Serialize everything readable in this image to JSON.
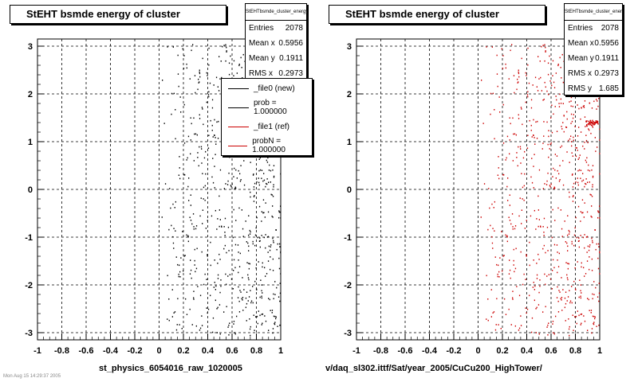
{
  "footer_note": "Mon Aug 15 14:29:37 2005",
  "panels": [
    {
      "title": "StEHT bsmde energy of cluster",
      "xlabel": "st_physics_6054016_raw_1020005",
      "stats": {
        "header": "StEHTbsmde_cluster_energy",
        "rows": [
          {
            "label": "Entries",
            "value": "2078"
          },
          {
            "label": "Mean x",
            "value": "0.5956"
          },
          {
            "label": "Mean y",
            "value": "0.1911"
          },
          {
            "label": "RMS x",
            "value": "0.2973"
          }
        ]
      },
      "legend": [
        {
          "label": "_file0 (new)",
          "color": "#000000"
        },
        {
          "label": "prob = 1.000000",
          "color": "#000000"
        },
        {
          "label": "_file1 (ref)",
          "color": "#cc0000"
        },
        {
          "label": "probN = 1.000000",
          "color": "#cc0000"
        }
      ]
    },
    {
      "title": "StEHT bsmde energy of cluster",
      "xlabel": "v/daq_sl302.ittf/Sat/year_2005/CuCu200_HighTower/",
      "stats": {
        "header": "StEHTbsmde_cluster_energy",
        "rows": [
          {
            "label": "Entries",
            "value": "2078"
          },
          {
            "label": "Mean x",
            "value": "0.5956"
          },
          {
            "label": "Mean y",
            "value": "0.1911"
          },
          {
            "label": "RMS x",
            "value": "0.2973"
          },
          {
            "label": "RMS y",
            "value": "1.685"
          }
        ]
      }
    }
  ],
  "chart_data": [
    {
      "type": "scatter",
      "title": "StEHT bsmde energy of cluster",
      "xlabel": "st_physics_6054016_raw_1020005",
      "ylabel": "",
      "xlim": [
        -1,
        1
      ],
      "ylim": [
        -3.15,
        3.15
      ],
      "xticks": [
        "-1",
        "-0.8",
        "-0.6",
        "-0.4",
        "-0.2",
        "0",
        "0.2",
        "0.4",
        "0.6",
        "0.8",
        "1"
      ],
      "yticks": [
        "-3",
        "-2",
        "-1",
        "0",
        "1",
        "2",
        "3"
      ],
      "grid": true,
      "legend_position": "top-right",
      "series": [
        {
          "name": "_file0 (new)",
          "color": "#000000",
          "entries": 2078,
          "x_range": [
            0.0,
            1.0
          ],
          "y_range": [
            -3.1,
            3.1
          ],
          "mean_x": 0.5956,
          "mean_y": 0.1911,
          "rms_x": 0.2973
        }
      ]
    },
    {
      "type": "scatter",
      "title": "StEHT bsmde energy of cluster",
      "xlabel": "v/daq_sl302.ittf/Sat/year_2005/CuCu200_HighTower/",
      "ylabel": "",
      "xlim": [
        -1,
        1
      ],
      "ylim": [
        -3.15,
        3.15
      ],
      "xticks": [
        "-1",
        "-0.8",
        "-0.6",
        "-0.4",
        "-0.2",
        "0",
        "0.2",
        "0.4",
        "0.6",
        "0.8",
        "1"
      ],
      "yticks": [
        "-3",
        "-2",
        "-1",
        "0",
        "1",
        "2",
        "3"
      ],
      "grid": true,
      "series": [
        {
          "name": "_file1 (ref)",
          "color": "#cc0000",
          "entries": 2078,
          "x_range": [
            0.0,
            1.0
          ],
          "y_range": [
            -3.1,
            3.1
          ],
          "mean_x": 0.5956,
          "mean_y": 0.1911,
          "rms_x": 0.2973,
          "rms_y": 1.685
        }
      ]
    }
  ]
}
